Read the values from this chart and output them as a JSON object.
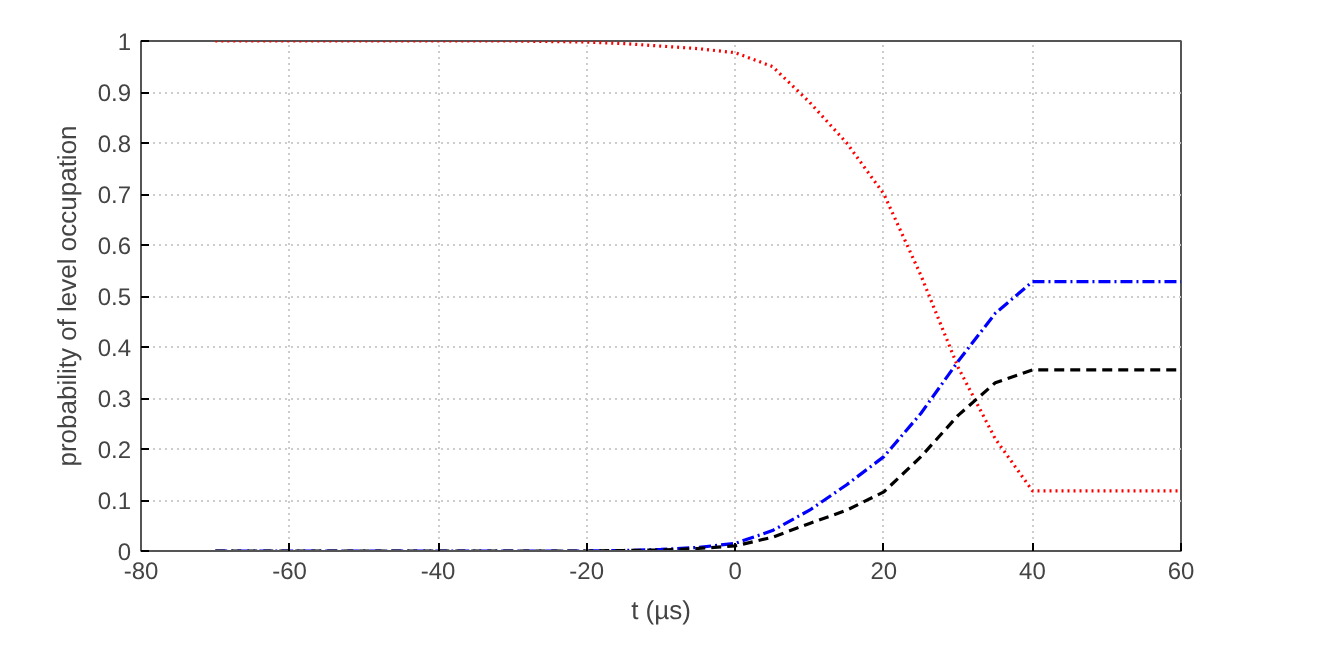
{
  "chart_data": {
    "type": "line",
    "xlabel": "t (µs)",
    "ylabel": "probability of level occupation",
    "x": [
      -70,
      -30,
      -20,
      -15,
      -10,
      -5,
      0,
      5,
      10,
      15,
      20,
      25,
      30,
      35,
      40,
      50,
      60
    ],
    "series": [
      {
        "color": "#ff0000",
        "line_style": "dotted",
        "values": [
          1,
          1,
          0.998,
          0.995,
          0.99,
          0.985,
          0.977,
          0.95,
          0.88,
          0.8,
          0.7,
          0.54,
          0.36,
          0.22,
          0.118,
          0.118,
          0.118
        ]
      },
      {
        "color": "#0000ff",
        "line_style": "dashdot",
        "values": [
          0,
          0,
          0,
          0.001,
          0.003,
          0.007,
          0.015,
          0.04,
          0.08,
          0.13,
          0.185,
          0.27,
          0.372,
          0.466,
          0.528,
          0.528,
          0.528
        ]
      },
      {
        "color": "#000000",
        "line_style": "dashed",
        "values": [
          0,
          0,
          0,
          0.001,
          0.002,
          0.005,
          0.01,
          0.027,
          0.054,
          0.08,
          0.116,
          0.185,
          0.266,
          0.33,
          0.355,
          0.355,
          0.355
        ]
      }
    ],
    "xlim": [
      -80,
      60
    ],
    "ylim": [
      0,
      1
    ],
    "xticks": [
      -80,
      -60,
      -40,
      -20,
      0,
      20,
      40,
      60
    ],
    "yticks": [
      0,
      0.1,
      0.2,
      0.3,
      0.4,
      0.5,
      0.6,
      0.7,
      0.8,
      0.9,
      1
    ],
    "grid": true
  }
}
